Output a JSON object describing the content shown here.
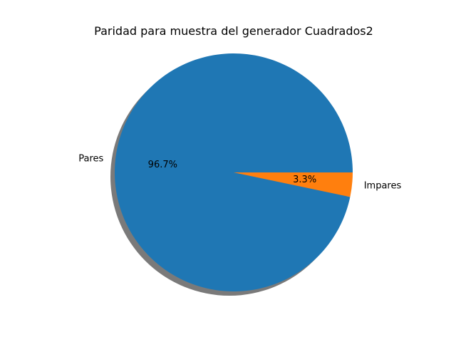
{
  "chart_data": {
    "type": "pie",
    "title": "Paridad para muestra del generador Cuadrados2",
    "slices": [
      {
        "label": "Pares",
        "value": 96.7,
        "pct_label": "96.7%",
        "color": "#1f77b4"
      },
      {
        "label": "Impares",
        "value": 3.3,
        "pct_label": "3.3%",
        "color": "#ff7f0e"
      }
    ],
    "start_angle_deg": 0,
    "direction": "counterclockwise",
    "shadow": true,
    "shadow_color": "#4d4d4d",
    "legend": "none"
  }
}
